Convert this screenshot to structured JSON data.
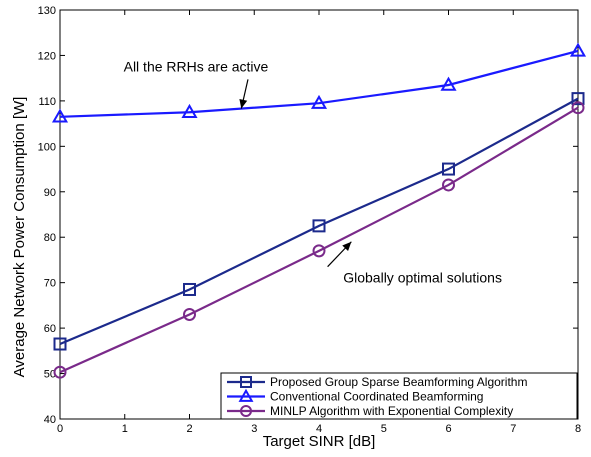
{
  "chart_data": {
    "type": "line",
    "xlabel": "Target SINR [dB]",
    "ylabel": "Average Network Power Consumption [W]",
    "xlim": [
      0,
      8
    ],
    "ylim": [
      40,
      130
    ],
    "xticks": [
      0,
      1,
      2,
      3,
      4,
      5,
      6,
      7,
      8
    ],
    "yticks": [
      40,
      50,
      60,
      70,
      80,
      90,
      100,
      110,
      120,
      130
    ],
    "grid": false,
    "legend_position": "bottom-right",
    "series": [
      {
        "name": "Proposed Group Sparse Beamforming Algorithm",
        "marker": "square",
        "color": "#1c2a8c",
        "x": [
          0,
          2,
          4,
          6,
          8
        ],
        "y": [
          56.5,
          68.5,
          82.5,
          95,
          110.5
        ]
      },
      {
        "name": "Conventional Coordinated Beamforming",
        "marker": "triangle",
        "color": "#1a1aff",
        "x": [
          0,
          2,
          4,
          6,
          8
        ],
        "y": [
          106.5,
          107.5,
          109.5,
          113.5,
          121
        ]
      },
      {
        "name": "MINLP Algorithm with Exponential Complexity",
        "marker": "circle",
        "color": "#7a2a8a",
        "x": [
          0,
          2,
          4,
          6,
          8
        ],
        "y": [
          50.3,
          63,
          77,
          91.5,
          108.5
        ]
      }
    ],
    "annotations": [
      {
        "text": "All the RRHs are active",
        "text_x": 2.1,
        "text_y": 116.5,
        "arrow_to_x": 2.8,
        "arrow_to_y": 108.3
      },
      {
        "text": "Globally optimal solutions",
        "text_x": 5.6,
        "text_y": 70,
        "arrow_to_x": 4.5,
        "arrow_to_y": 79
      }
    ]
  }
}
